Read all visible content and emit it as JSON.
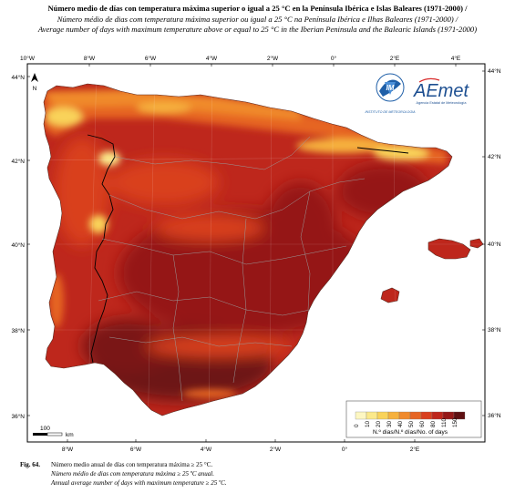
{
  "title": {
    "line1": "Número medio de días con temperatura máxima superior o igual a 25 °C en la Península Ibérica e Islas Baleares (1971-2000) /",
    "line2": "Número médio de dias com temperatura máxima superior ou igual a 25 °C na Península Ibérica e Ilhas Baleares (1971-2000) /",
    "line3": "Average number of days with maximum temperature above or equal to 25 °C in the Iberian Peninsula and the Balearic Islands (1971-2000)"
  },
  "axes": {
    "lon_ticks_top": [
      "10°W",
      "8°W",
      "6°W",
      "4°W",
      "2°W",
      "0°",
      "2°E",
      "4°E"
    ],
    "lon_ticks_bottom": [
      "8°W",
      "6°W",
      "4°W",
      "2°W",
      "0°",
      "2°E"
    ],
    "lat_ticks_left": [
      "44°N",
      "42°N",
      "40°N",
      "38°N",
      "36°N"
    ],
    "lat_ticks_right": [
      "44°N",
      "42°N",
      "40°N",
      "38°N",
      "36°N"
    ]
  },
  "north_arrow": {
    "label": "N",
    "icon": "north-arrow-icon"
  },
  "scale_bar": {
    "value": "100",
    "unit": "km"
  },
  "logos": {
    "im": {
      "caption": "INSTITUTO DE METEOROLOGIA",
      "icon": "im-logo-icon"
    },
    "aemet": {
      "name": "AEmet",
      "subtitle": "Agencia Estatal de Meteorología",
      "icon": "aemet-logo-icon"
    }
  },
  "legend": {
    "classes": [
      "0",
      "10",
      "20",
      "30",
      "40",
      "50",
      "60",
      "80",
      "110",
      "150"
    ],
    "colors": [
      "#fdf7c2",
      "#fbe98a",
      "#f9d35a",
      "#f6b13e",
      "#f08a2c",
      "#e66524",
      "#d9401f",
      "#be271c",
      "#951918",
      "#5e1012"
    ],
    "title": "N.º dias/N.º días/No. of days"
  },
  "caption": {
    "label": "Fig. 64.",
    "line1": "Número medio anual de días con temperatura máxima ≥ 25 °C.",
    "line2": "Número médio de dias com temperatura máxima ≥ 25 ºC anual.",
    "line3": "Annual average number of days with maximum temperature ≥ 25 ºC."
  },
  "colors": {
    "sea": "#ffffff",
    "frame": "#000000",
    "borders": "#8a8a8a"
  }
}
